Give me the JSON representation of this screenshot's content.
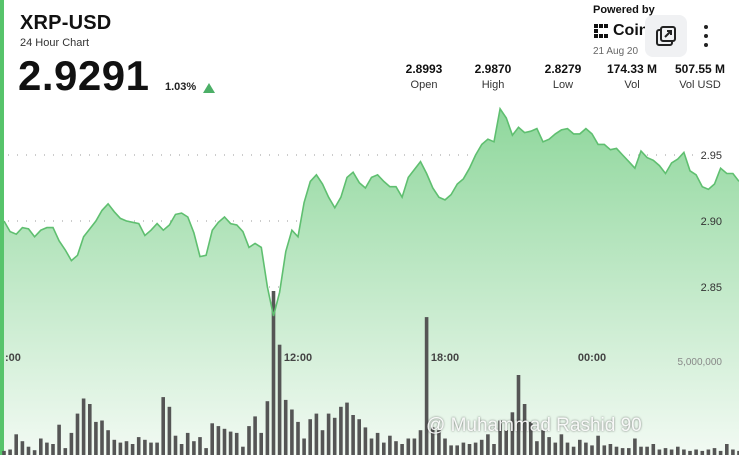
{
  "header": {
    "title": "XRP-USD",
    "subtitle": "24 Hour Chart",
    "price": "2.9291",
    "change": "1.03%"
  },
  "stats": [
    {
      "value": "2.8993",
      "label": "Open"
    },
    {
      "value": "2.9870",
      "label": "High"
    },
    {
      "value": "2.8279",
      "label": "Low"
    },
    {
      "value": "174.33 M",
      "label": "Vol"
    },
    {
      "value": "507.55 M",
      "label": "Vol USD"
    }
  ],
  "branding": {
    "powered_by": "Powered by",
    "name": "Coin",
    "date": "21 Aug 20"
  },
  "overlay": {
    "popout_icon": "external-window-icon",
    "more_icon": "vertical-dots-icon",
    "watermark": "@ Muhammad Rashid 90"
  },
  "colors": {
    "line": "#5fbf70",
    "area_top": "#8fd79c",
    "area_bottom": "#f2faf3",
    "volume": "#555555",
    "accent": "#4caf67"
  },
  "chart_data": {
    "type": "area",
    "x_ticks": [
      {
        "label": ":00",
        "at": 0
      },
      {
        "label": "12:00",
        "at": 12
      },
      {
        "label": "18:00",
        "at": 18
      },
      {
        "label": "00:00",
        "at": 24
      }
    ],
    "y_ticks": [
      2.85,
      2.9,
      2.95
    ],
    "ylim": [
      2.8,
      3.0
    ],
    "xlim": [
      0,
      30
    ],
    "volume_label": "5,000,000",
    "volume_ylim": [
      0,
      14000000
    ],
    "x": [
      0,
      0.25,
      0.5,
      0.75,
      1,
      1.25,
      1.5,
      1.75,
      2,
      2.25,
      2.5,
      2.75,
      3,
      3.25,
      3.5,
      3.75,
      4,
      4.25,
      4.5,
      4.75,
      5,
      5.25,
      5.5,
      5.75,
      6,
      6.25,
      6.5,
      6.75,
      7,
      7.25,
      7.5,
      7.75,
      8,
      8.25,
      8.5,
      8.75,
      9,
      9.25,
      9.5,
      9.75,
      10,
      10.25,
      10.5,
      10.75,
      11,
      11.25,
      11.5,
      11.75,
      12,
      12.25,
      12.5,
      12.75,
      13,
      13.25,
      13.5,
      13.75,
      14,
      14.25,
      14.5,
      14.75,
      15,
      15.25,
      15.5,
      15.75,
      16,
      16.25,
      16.5,
      16.75,
      17,
      17.25,
      17.5,
      17.75,
      18,
      18.25,
      18.5,
      18.75,
      19,
      19.25,
      19.5,
      19.75,
      20,
      20.25,
      20.5,
      20.75,
      21,
      21.25,
      21.5,
      21.75,
      22,
      22.25,
      22.5,
      22.75,
      23,
      23.25,
      23.5,
      23.75,
      24,
      24.25,
      24.5,
      24.75,
      25,
      25.25,
      25.5,
      25.75,
      26,
      26.25,
      26.5,
      26.75,
      27,
      27.25,
      27.5,
      27.75,
      28,
      28.25,
      28.5,
      28.75,
      29,
      29.25,
      29.5,
      29.75,
      30
    ],
    "price": [
      2.9,
      2.892,
      2.89,
      2.895,
      2.894,
      2.888,
      2.893,
      2.895,
      2.895,
      2.885,
      2.878,
      2.87,
      2.874,
      2.888,
      2.894,
      2.9,
      2.908,
      2.913,
      2.907,
      2.902,
      2.9,
      2.899,
      2.898,
      2.889,
      2.893,
      2.898,
      2.893,
      2.897,
      2.905,
      2.906,
      2.903,
      2.891,
      2.873,
      2.874,
      2.893,
      2.899,
      2.903,
      2.898,
      2.897,
      2.892,
      2.88,
      2.883,
      2.88,
      2.85,
      2.828,
      2.846,
      2.877,
      2.893,
      2.888,
      2.914,
      2.93,
      2.935,
      2.928,
      2.918,
      2.91,
      2.918,
      2.933,
      2.937,
      2.929,
      2.925,
      2.933,
      2.935,
      2.93,
      2.926,
      2.926,
      2.918,
      2.933,
      2.939,
      2.945,
      2.936,
      2.925,
      2.918,
      2.916,
      2.92,
      2.928,
      2.932,
      2.94,
      2.95,
      2.958,
      2.962,
      2.96,
      2.985,
      2.978,
      2.965,
      2.971,
      2.967,
      2.968,
      2.97,
      2.96,
      2.962,
      2.966,
      2.969,
      2.97,
      2.966,
      2.966,
      2.97,
      2.966,
      2.958,
      2.958,
      2.954,
      2.955,
      2.95,
      2.945,
      2.94,
      2.953,
      2.948,
      2.946,
      2.942,
      2.936,
      2.944,
      2.947,
      2.952,
      2.938,
      2.935,
      2.926,
      2.924,
      2.928,
      2.94,
      2.936,
      2.936,
      2.93
    ],
    "volume": [
      300000,
      400000,
      1500000,
      1000000,
      600000,
      350000,
      1200000,
      900000,
      800000,
      2200000,
      500000,
      1600000,
      3000000,
      4100000,
      3700000,
      2400000,
      2500000,
      1800000,
      1100000,
      900000,
      1000000,
      800000,
      1300000,
      1100000,
      900000,
      900000,
      4200000,
      3500000,
      1400000,
      800000,
      1600000,
      1000000,
      1300000,
      500000,
      2300000,
      2100000,
      1900000,
      1700000,
      1600000,
      600000,
      2100000,
      2800000,
      1600000,
      3900000,
      11900000,
      8000000,
      4000000,
      3300000,
      2400000,
      1200000,
      2600000,
      3000000,
      1800000,
      3000000,
      2700000,
      3500000,
      3800000,
      2900000,
      2600000,
      2000000,
      1200000,
      1600000,
      900000,
      1400000,
      1000000,
      800000,
      1200000,
      1200000,
      1800000,
      10000000,
      2000000,
      1800000,
      1200000,
      700000,
      700000,
      900000,
      800000,
      900000,
      1100000,
      1500000,
      800000,
      2500000,
      1800000,
      3100000,
      5800000,
      3700000,
      2400000,
      1000000,
      1800000,
      1300000,
      900000,
      1500000,
      900000,
      600000,
      1100000,
      900000,
      700000,
      1400000,
      700000,
      800000,
      600000,
      500000,
      500000,
      1200000,
      600000,
      600000,
      800000,
      400000,
      500000,
      400000,
      600000,
      400000,
      300000,
      400000,
      300000,
      400000,
      500000,
      300000,
      800000,
      400000,
      300000
    ]
  }
}
